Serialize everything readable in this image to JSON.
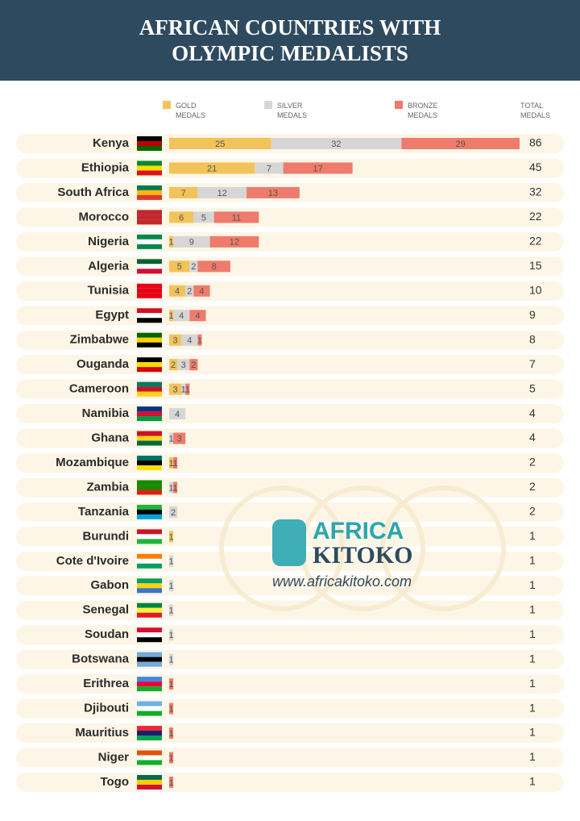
{
  "chart_data": {
    "type": "stacked-bar",
    "title": "AFRICAN COUNTRIES WITH OLYMPIC MEDALISTS",
    "categories": [
      "Kenya",
      "Ethiopia",
      "South Africa",
      "Morocco",
      "Nigeria",
      "Algeria",
      "Tunisia",
      "Egypt",
      "Zimbabwe",
      "Ouganda",
      "Cameroon",
      "Namibia",
      "Ghana",
      "Mozambique",
      "Zambia",
      "Tanzania",
      "Burundi",
      "Cote d'Ivoire",
      "Gabon",
      "Senegal",
      "Soudan",
      "Botswana",
      "Erithrea",
      "Djibouti",
      "Mauritius",
      "Niger",
      "Togo"
    ],
    "series": [
      {
        "name": "GOLD MEDALS",
        "color": "#f2c35a",
        "values": [
          25,
          21,
          7,
          6,
          1,
          5,
          4,
          1,
          3,
          2,
          3,
          0,
          0,
          1,
          0,
          0,
          1,
          0,
          0,
          0,
          0,
          0,
          0,
          0,
          0,
          0,
          0
        ]
      },
      {
        "name": "SILVER MEDALS",
        "color": "#d6d6d6",
        "values": [
          32,
          7,
          12,
          5,
          9,
          2,
          2,
          4,
          4,
          3,
          1,
          4,
          1,
          0,
          1,
          2,
          0,
          1,
          1,
          1,
          1,
          1,
          0,
          0,
          0,
          0,
          0
        ]
      },
      {
        "name": "BRONZE MEDALS",
        "color": "#ee7b6c",
        "values": [
          29,
          17,
          13,
          11,
          12,
          8,
          4,
          4,
          1,
          2,
          1,
          0,
          3,
          1,
          1,
          0,
          0,
          0,
          0,
          0,
          0,
          0,
          1,
          1,
          1,
          1,
          1
        ]
      }
    ],
    "totals_label": "TOTAL MEDALS",
    "totals": [
      86,
      45,
      32,
      22,
      22,
      15,
      10,
      9,
      8,
      7,
      5,
      4,
      4,
      2,
      2,
      2,
      1,
      1,
      1,
      1,
      1,
      1,
      1,
      1,
      1,
      1,
      1
    ],
    "xlim": [
      0,
      86
    ],
    "annotations": [
      "AFRICA",
      "KITOKO",
      "www.africakitoko.com"
    ]
  }
}
